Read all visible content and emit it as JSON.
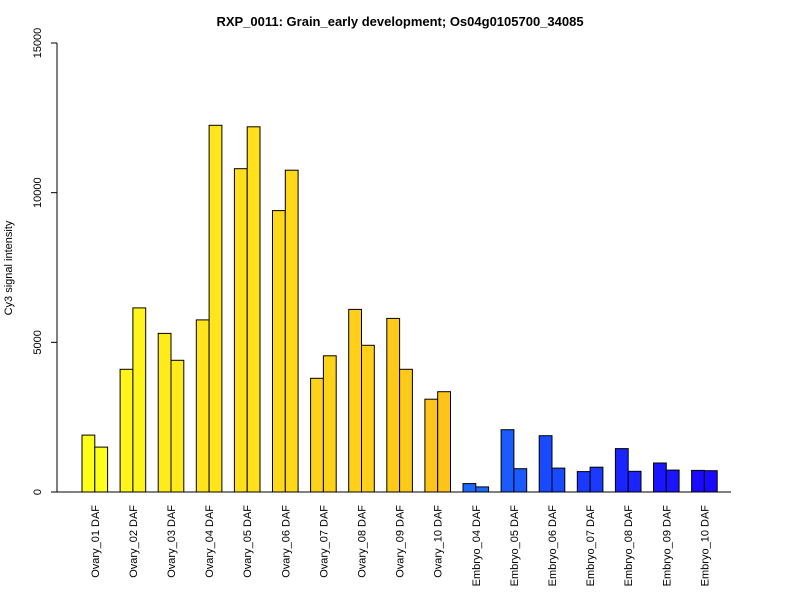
{
  "chart_data": {
    "type": "bar",
    "title": "RXP_0011: Grain_early development; Os04g0105700_34085",
    "ylabel": "Cy3 signal intensity",
    "xlabel": "",
    "ylim": [
      0,
      15000
    ],
    "yticks": [
      0,
      5000,
      10000,
      15000
    ],
    "grid": false,
    "categories": [
      "Ovary_01 DAF",
      "Ovary_02 DAF",
      "Ovary_03 DAF",
      "Ovary_04 DAF",
      "Ovary_05 DAF",
      "Ovary_06 DAF",
      "Ovary_07 DAF",
      "Ovary_08 DAF",
      "Ovary_09 DAF",
      "Ovary_10 DAF",
      "Embryo_04 DAF",
      "Embryo_05 DAF",
      "Embryo_06 DAF",
      "Embryo_07 DAF",
      "Embryo_08 DAF",
      "Embryo_09 DAF",
      "Embryo_10 DAF"
    ],
    "series": [
      {
        "values": [
          1900,
          4100,
          5300,
          5750,
          10800,
          9400,
          3800,
          6100,
          5800,
          3100,
          280,
          2080,
          1880,
          680,
          1450,
          970,
          720
        ]
      },
      {
        "values": [
          1500,
          6150,
          4400,
          12250,
          12200,
          10750,
          4550,
          4900,
          4100,
          3350,
          170,
          780,
          800,
          830,
          690,
          730,
          710
        ]
      }
    ],
    "colors": [
      "#ffff1a",
      "#fff51a",
      "#ffeb1a",
      "#ffe51a",
      "#ffe01a",
      "#ffd81a",
      "#ffd21a",
      "#ffcf1a",
      "#ffc91a",
      "#ffc41a",
      "#1a6aff",
      "#1a5aff",
      "#1a4aff",
      "#1a3aff",
      "#1a24ff",
      "#1a14ff",
      "#1a0aff"
    ]
  }
}
